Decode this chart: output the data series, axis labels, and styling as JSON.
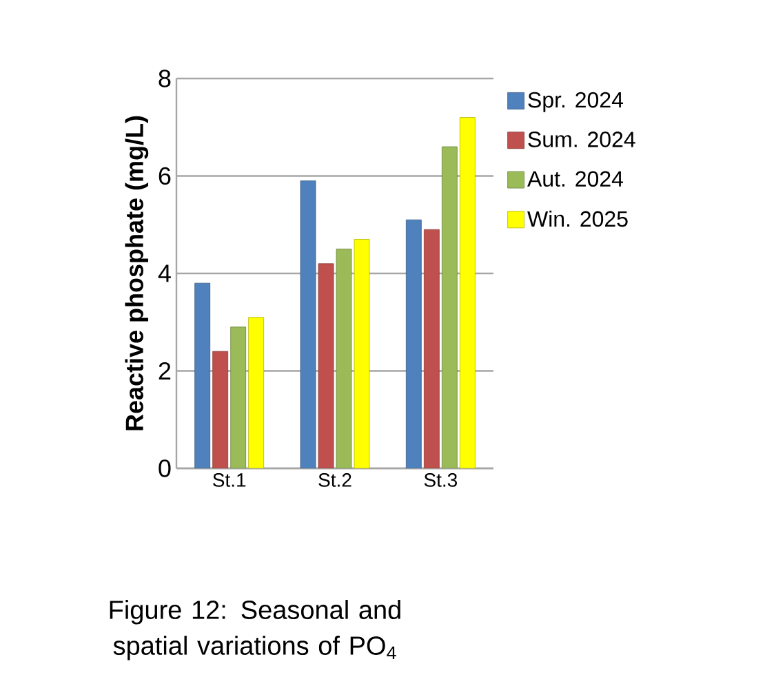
{
  "chart_data": {
    "type": "bar",
    "ylabel": "Reactive phosphate (mg/L)",
    "categories": [
      "St.1",
      "St.2",
      "St.3"
    ],
    "series": [
      {
        "name": "Spr. 2024",
        "color": "#4f81bd",
        "values": [
          3.8,
          5.9,
          5.1
        ]
      },
      {
        "name": "Sum. 2024",
        "color": "#c0504d",
        "values": [
          2.4,
          4.2,
          4.9
        ]
      },
      {
        "name": "Aut. 2024",
        "color": "#9bbb59",
        "values": [
          2.9,
          4.5,
          6.6
        ]
      },
      {
        "name": "Win. 2025",
        "color": "#ffff00",
        "values": [
          3.1,
          4.7,
          7.2
        ]
      }
    ],
    "ylim": [
      0,
      8
    ],
    "yticks": [
      0,
      2,
      4,
      6,
      8
    ],
    "grid": "y",
    "legend": "right",
    "annotations": [
      "Figure 12: Seasonal and spatial variations of PO$_{4}$"
    ]
  }
}
